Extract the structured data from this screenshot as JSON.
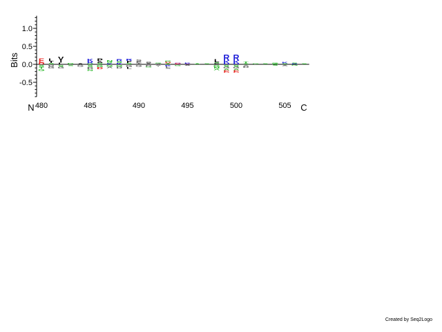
{
  "chart_data": {
    "type": "sequence-logo",
    "ylabel": "Bits",
    "ylim": [
      -0.9,
      1.35
    ],
    "yticks": [
      -0.5,
      0.0,
      0.5,
      1.0
    ],
    "ytick_labels": [
      "-0.5",
      "0.0",
      "0.5",
      "1.0"
    ],
    "x_start": 480,
    "x_end": 507,
    "xtick_positions": [
      480,
      485,
      490,
      495,
      500,
      505
    ],
    "xtick_labels": [
      "480",
      "485",
      "490",
      "495",
      "500",
      "505"
    ],
    "n_terminal_label": "N",
    "c_terminal_label": "C",
    "colors": {
      "acidic": "#e8201c",
      "basic": "#1c1cd8",
      "hydrophobic": "#000000",
      "polar": "#22b422",
      "amide": "#a020a0",
      "aromatic": "#606060"
    },
    "positions": [
      {
        "pos": 480,
        "above": [
          {
            "aa": "E",
            "bits": 0.11,
            "c": "acidic"
          },
          {
            "aa": "D",
            "bits": 0.05,
            "c": "acidic"
          }
        ],
        "below": [
          {
            "aa": "S",
            "bits": 0.06,
            "c": "polar"
          },
          {
            "aa": "T",
            "bits": 0.05,
            "c": "polar"
          },
          {
            "aa": "G",
            "bits": 0.05,
            "c": "polar"
          }
        ]
      },
      {
        "pos": 481,
        "above": [
          {
            "aa": "L",
            "bits": 0.07,
            "c": "hydrophobic"
          },
          {
            "aa": "I",
            "bits": 0.05,
            "c": "hydrophobic"
          },
          {
            "aa": "S",
            "bits": 0.04,
            "c": "polar"
          }
        ],
        "below": [
          {
            "aa": "D",
            "bits": 0.05,
            "c": "aromatic"
          },
          {
            "aa": "G",
            "bits": 0.05,
            "c": "aromatic"
          }
        ]
      },
      {
        "pos": 482,
        "above": [
          {
            "aa": "V",
            "bits": 0.1,
            "c": "hydrophobic"
          },
          {
            "aa": "I",
            "bits": 0.07,
            "c": "hydrophobic"
          },
          {
            "aa": "L",
            "bits": 0.05,
            "c": "hydrophobic"
          }
        ],
        "below": [
          {
            "aa": "S",
            "bits": 0.05,
            "c": "polar"
          },
          {
            "aa": "G",
            "bits": 0.05,
            "c": "aromatic"
          }
        ]
      },
      {
        "pos": 483,
        "above": [
          {
            "aa": "G",
            "bits": 0.04,
            "c": "polar"
          }
        ],
        "below": [
          {
            "aa": "S",
            "bits": 0.03,
            "c": "polar"
          }
        ]
      },
      {
        "pos": 484,
        "above": [
          {
            "aa": "A",
            "bits": 0.03,
            "c": "hydrophobic"
          }
        ],
        "below": [
          {
            "aa": "G",
            "bits": 0.05,
            "c": "aromatic"
          }
        ]
      },
      {
        "pos": 485,
        "above": [
          {
            "aa": "K",
            "bits": 0.07,
            "c": "basic"
          },
          {
            "aa": "R",
            "bits": 0.05,
            "c": "basic"
          },
          {
            "aa": "G",
            "bits": 0.03,
            "c": "polar"
          }
        ],
        "below": [
          {
            "aa": "S",
            "bits": 0.06,
            "c": "polar"
          },
          {
            "aa": "D",
            "bits": 0.06,
            "c": "aromatic"
          },
          {
            "aa": "N",
            "bits": 0.04,
            "c": "polar"
          }
        ]
      },
      {
        "pos": 486,
        "above": [
          {
            "aa": "P",
            "bits": 0.08,
            "c": "hydrophobic"
          },
          {
            "aa": "A",
            "bits": 0.05,
            "c": "hydrophobic"
          },
          {
            "aa": "S",
            "bits": 0.04,
            "c": "polar"
          }
        ],
        "below": [
          {
            "aa": "G",
            "bits": 0.06,
            "c": "polar"
          },
          {
            "aa": "D",
            "bits": 0.06,
            "c": "acidic"
          }
        ]
      },
      {
        "pos": 487,
        "above": [
          {
            "aa": "N",
            "bits": 0.05,
            "c": "polar"
          },
          {
            "aa": "S",
            "bits": 0.04,
            "c": "polar"
          },
          {
            "aa": "K",
            "bits": 0.03,
            "c": "basic"
          }
        ],
        "below": [
          {
            "aa": "G",
            "bits": 0.05,
            "c": "polar"
          },
          {
            "aa": "A",
            "bits": 0.04,
            "c": "aromatic"
          }
        ]
      },
      {
        "pos": 488,
        "above": [
          {
            "aa": "R",
            "bits": 0.06,
            "c": "basic"
          },
          {
            "aa": "S",
            "bits": 0.05,
            "c": "polar"
          },
          {
            "aa": "K",
            "bits": 0.04,
            "c": "basic"
          }
        ],
        "below": [
          {
            "aa": "G",
            "bits": 0.05,
            "c": "polar"
          },
          {
            "aa": "D",
            "bits": 0.05,
            "c": "aromatic"
          }
        ]
      },
      {
        "pos": 489,
        "above": [
          {
            "aa": "F",
            "bits": 0.06,
            "c": "hydrophobic"
          },
          {
            "aa": "R",
            "bits": 0.06,
            "c": "basic"
          },
          {
            "aa": "S",
            "bits": 0.04,
            "c": "polar"
          }
        ],
        "below": [
          {
            "aa": "G",
            "bits": 0.06,
            "c": "aromatic"
          },
          {
            "aa": "L",
            "bits": 0.05,
            "c": "hydrophobic"
          }
        ]
      },
      {
        "pos": 490,
        "above": [
          {
            "aa": "E",
            "bits": 0.05,
            "c": "aromatic"
          },
          {
            "aa": "S",
            "bits": 0.05,
            "c": "aromatic"
          },
          {
            "aa": "T",
            "bits": 0.04,
            "c": "aromatic"
          }
        ],
        "below": [
          {
            "aa": "G",
            "bits": 0.05,
            "c": "aromatic"
          }
        ]
      },
      {
        "pos": 491,
        "above": [
          {
            "aa": "S",
            "bits": 0.04,
            "c": "hydrophobic"
          },
          {
            "aa": "A",
            "bits": 0.03,
            "c": "aromatic"
          }
        ],
        "below": [
          {
            "aa": "D",
            "bits": 0.04,
            "c": "aromatic"
          },
          {
            "aa": "G",
            "bits": 0.03,
            "c": "polar"
          }
        ]
      },
      {
        "pos": 492,
        "above": [
          {
            "aa": "G",
            "bits": 0.03,
            "c": "polar"
          },
          {
            "aa": "A",
            "bits": 0.02,
            "c": "aromatic"
          }
        ],
        "below": [
          {
            "aa": "Y",
            "bits": 0.04,
            "c": "aromatic"
          }
        ]
      },
      {
        "pos": 493,
        "above": [
          {
            "aa": "D",
            "bits": 0.04,
            "c": "acidic"
          },
          {
            "aa": "G",
            "bits": 0.04,
            "c": "polar"
          },
          {
            "aa": "A",
            "bits": 0.03,
            "c": "polar"
          }
        ],
        "below": [
          {
            "aa": "K",
            "bits": 0.04,
            "c": "basic"
          },
          {
            "aa": "L",
            "bits": 0.04,
            "c": "aromatic"
          },
          {
            "aa": "S",
            "bits": 0.03,
            "c": "aromatic"
          }
        ]
      },
      {
        "pos": 494,
        "above": [
          {
            "aa": "Q",
            "bits": 0.03,
            "c": "amide"
          },
          {
            "aa": "E",
            "bits": 0.02,
            "c": "acidic"
          }
        ],
        "below": [
          {
            "aa": "G",
            "bits": 0.03,
            "c": "polar"
          }
        ]
      },
      {
        "pos": 495,
        "above": [
          {
            "aa": "V",
            "bits": 0.02,
            "c": "amide"
          },
          {
            "aa": "K",
            "bits": 0.02,
            "c": "basic"
          }
        ],
        "below": [
          {
            "aa": "A",
            "bits": 0.02,
            "c": "aromatic"
          }
        ]
      },
      {
        "pos": 496,
        "above": [
          {
            "aa": "A",
            "bits": 0.02,
            "c": "polar"
          }
        ],
        "below": [
          {
            "aa": "G",
            "bits": 0.01,
            "c": "polar"
          }
        ]
      },
      {
        "pos": 497,
        "above": [
          {
            "aa": "S",
            "bits": 0.02,
            "c": "polar"
          }
        ],
        "below": [
          {
            "aa": "G",
            "bits": 0.01,
            "c": "polar"
          }
        ]
      },
      {
        "pos": 498,
        "above": [
          {
            "aa": "L",
            "bits": 0.09,
            "c": "hydrophobic"
          },
          {
            "aa": "E",
            "bits": 0.03,
            "c": "hydrophobic"
          },
          {
            "aa": "S",
            "bits": 0.03,
            "c": "polar"
          }
        ],
        "below": [
          {
            "aa": "G",
            "bits": 0.06,
            "c": "polar"
          },
          {
            "aa": "N",
            "bits": 0.04,
            "c": "polar"
          },
          {
            "aa": "A",
            "bits": 0.04,
            "c": "polar"
          }
        ]
      },
      {
        "pos": 499,
        "above": [
          {
            "aa": "R",
            "bits": 0.16,
            "c": "basic"
          },
          {
            "aa": "K",
            "bits": 0.08,
            "c": "basic"
          },
          {
            "aa": "H",
            "bits": 0.03,
            "c": "basic"
          }
        ],
        "below": [
          {
            "aa": "S",
            "bits": 0.05,
            "c": "polar"
          },
          {
            "aa": "G",
            "bits": 0.05,
            "c": "aromatic"
          },
          {
            "aa": "A",
            "bits": 0.04,
            "c": "polar"
          },
          {
            "aa": "E",
            "bits": 0.04,
            "c": "acidic"
          },
          {
            "aa": "D",
            "bits": 0.03,
            "c": "acidic"
          }
        ]
      },
      {
        "pos": 500,
        "above": [
          {
            "aa": "R",
            "bits": 0.16,
            "c": "basic"
          },
          {
            "aa": "K",
            "bits": 0.08,
            "c": "basic"
          },
          {
            "aa": "H",
            "bits": 0.03,
            "c": "basic"
          }
        ],
        "below": [
          {
            "aa": "S",
            "bits": 0.05,
            "c": "polar"
          },
          {
            "aa": "G",
            "bits": 0.05,
            "c": "aromatic"
          },
          {
            "aa": "A",
            "bits": 0.04,
            "c": "polar"
          },
          {
            "aa": "E",
            "bits": 0.04,
            "c": "acidic"
          },
          {
            "aa": "D",
            "bits": 0.03,
            "c": "acidic"
          }
        ]
      },
      {
        "pos": 501,
        "above": [
          {
            "aa": "T",
            "bits": 0.05,
            "c": "polar"
          },
          {
            "aa": "S",
            "bits": 0.03,
            "c": "polar"
          }
        ],
        "below": [
          {
            "aa": "A",
            "bits": 0.04,
            "c": "aromatic"
          },
          {
            "aa": "D",
            "bits": 0.04,
            "c": "aromatic"
          }
        ]
      },
      {
        "pos": 502,
        "above": [
          {
            "aa": "G",
            "bits": 0.02,
            "c": "polar"
          }
        ],
        "below": [
          {
            "aa": "A",
            "bits": 0.01,
            "c": "aromatic"
          }
        ]
      },
      {
        "pos": 503,
        "above": [
          {
            "aa": "S",
            "bits": 0.02,
            "c": "polar"
          }
        ],
        "below": [
          {
            "aa": "A",
            "bits": 0.01,
            "c": "aromatic"
          }
        ]
      },
      {
        "pos": 504,
        "above": [
          {
            "aa": "G",
            "bits": 0.03,
            "c": "polar"
          },
          {
            "aa": "A",
            "bits": 0.02,
            "c": "polar"
          }
        ],
        "below": [
          {
            "aa": "S",
            "bits": 0.02,
            "c": "polar"
          }
        ]
      },
      {
        "pos": 505,
        "above": [
          {
            "aa": "K",
            "bits": 0.04,
            "c": "basic"
          },
          {
            "aa": "S",
            "bits": 0.03,
            "c": "polar"
          }
        ],
        "below": [
          {
            "aa": "A",
            "bits": 0.03,
            "c": "aromatic"
          }
        ]
      },
      {
        "pos": 506,
        "above": [
          {
            "aa": "R",
            "bits": 0.02,
            "c": "basic"
          },
          {
            "aa": "S",
            "bits": 0.02,
            "c": "polar"
          }
        ],
        "below": [
          {
            "aa": "G",
            "bits": 0.02,
            "c": "polar"
          }
        ]
      },
      {
        "pos": 507,
        "above": [
          {
            "aa": "S",
            "bits": 0.02,
            "c": "polar"
          }
        ],
        "below": [
          {
            "aa": "G",
            "bits": 0.01,
            "c": "polar"
          }
        ]
      }
    ]
  },
  "footer": {
    "credit": "Created by Seq2Logo"
  }
}
